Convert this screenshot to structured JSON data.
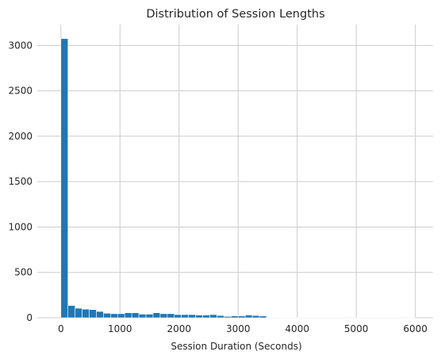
{
  "chart_data": {
    "type": "bar",
    "title": "Distribution of Session Lengths",
    "xlabel": "Session Duration (Seconds)",
    "ylabel": "",
    "xlim": [
      -400,
      6300
    ],
    "ylim": [
      0,
      3230
    ],
    "xticks": [
      0,
      1000,
      2000,
      3000,
      4000,
      5000,
      6000
    ],
    "yticks": [
      0,
      500,
      1000,
      1500,
      2000,
      2500,
      3000
    ],
    "grid": true,
    "legend": "none",
    "bin_edges": [
      0,
      120,
      240,
      360,
      480,
      600,
      720,
      840,
      960,
      1080,
      1200,
      1320,
      1440,
      1560,
      1680,
      1800,
      1920,
      2040,
      2160,
      2280,
      2400,
      2520,
      2640,
      2760,
      2880,
      3000,
      3120,
      3240,
      3360,
      3480,
      3600,
      3720,
      3840,
      3960,
      4080,
      4200,
      4320,
      4440,
      4560,
      4680,
      4800,
      4920,
      5040,
      5160,
      5280,
      5400,
      5520,
      5640,
      5760,
      5880,
      6000
    ],
    "values": [
      3075,
      135,
      105,
      95,
      90,
      70,
      50,
      45,
      45,
      55,
      55,
      40,
      40,
      55,
      45,
      45,
      35,
      35,
      35,
      30,
      30,
      35,
      25,
      15,
      20,
      20,
      30,
      25,
      20,
      5,
      3,
      3,
      2,
      2,
      1,
      1,
      1,
      1,
      1,
      1,
      1,
      1,
      1,
      1,
      1,
      1,
      1,
      1,
      1,
      2
    ]
  }
}
